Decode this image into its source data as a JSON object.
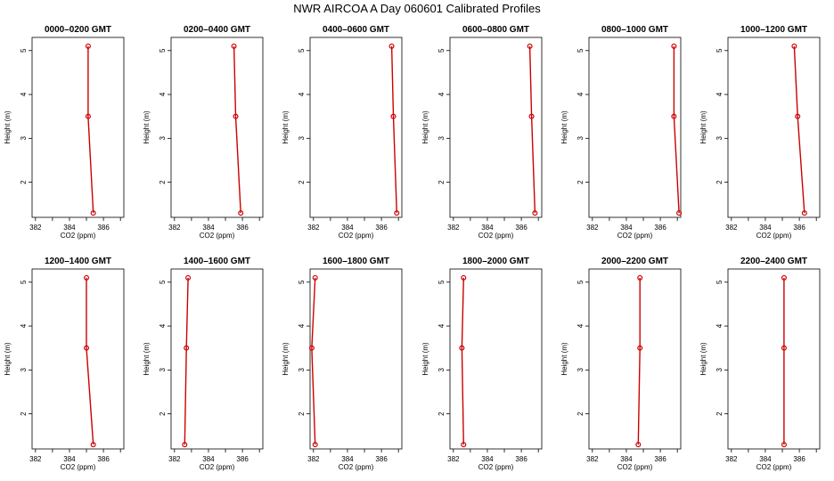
{
  "figure_title": "NWR AIRCOA A  Day 060601  Calibrated Profiles",
  "colors": {
    "series": "#cc0000",
    "axis": "#000000"
  },
  "chart_data": [
    {
      "type": "line",
      "title": "0000–0200 GMT",
      "xlabel": "CO2 (ppm)",
      "ylabel": "Height (m)",
      "xlim": [
        381.8,
        387.2
      ],
      "ylim": [
        1.2,
        5.3
      ],
      "xticks": [
        382,
        384,
        386
      ],
      "yticks": [
        2,
        3,
        4,
        5
      ],
      "series": [
        {
          "x": [
            385.4,
            385.1,
            385.1
          ],
          "y": [
            1.3,
            3.5,
            5.1
          ]
        }
      ]
    },
    {
      "type": "line",
      "title": "0200–0400 GMT",
      "xlabel": "CO2 (ppm)",
      "ylabel": "Height (m)",
      "xlim": [
        381.8,
        387.2
      ],
      "ylim": [
        1.2,
        5.3
      ],
      "xticks": [
        382,
        384,
        386
      ],
      "yticks": [
        2,
        3,
        4,
        5
      ],
      "series": [
        {
          "x": [
            385.9,
            385.6,
            385.5
          ],
          "y": [
            1.3,
            3.5,
            5.1
          ]
        }
      ]
    },
    {
      "type": "line",
      "title": "0400–0600 GMT",
      "xlabel": "CO2 (ppm)",
      "ylabel": "Height (m)",
      "xlim": [
        381.8,
        387.2
      ],
      "ylim": [
        1.2,
        5.3
      ],
      "xticks": [
        382,
        384,
        386
      ],
      "yticks": [
        2,
        3,
        4,
        5
      ],
      "series": [
        {
          "x": [
            386.9,
            386.7,
            386.6
          ],
          "y": [
            1.3,
            3.5,
            5.1
          ]
        }
      ]
    },
    {
      "type": "line",
      "title": "0600–0800 GMT",
      "xlabel": "CO2 (ppm)",
      "ylabel": "Height (m)",
      "xlim": [
        381.8,
        387.2
      ],
      "ylim": [
        1.2,
        5.3
      ],
      "xticks": [
        382,
        384,
        386
      ],
      "yticks": [
        2,
        3,
        4,
        5
      ],
      "series": [
        {
          "x": [
            386.8,
            386.6,
            386.5
          ],
          "y": [
            1.3,
            3.5,
            5.1
          ]
        }
      ]
    },
    {
      "type": "line",
      "title": "0800–1000 GMT",
      "xlabel": "CO2 (ppm)",
      "ylabel": "Height (m)",
      "xlim": [
        381.8,
        387.2
      ],
      "ylim": [
        1.2,
        5.3
      ],
      "xticks": [
        382,
        384,
        386
      ],
      "yticks": [
        2,
        3,
        4,
        5
      ],
      "series": [
        {
          "x": [
            387.1,
            386.8,
            386.8
          ],
          "y": [
            1.3,
            3.5,
            5.1
          ]
        }
      ]
    },
    {
      "type": "line",
      "title": "1000–1200 GMT",
      "xlabel": "CO2 (ppm)",
      "ylabel": "Height (m)",
      "xlim": [
        381.8,
        387.2
      ],
      "ylim": [
        1.2,
        5.3
      ],
      "xticks": [
        382,
        384,
        386
      ],
      "yticks": [
        2,
        3,
        4,
        5
      ],
      "series": [
        {
          "x": [
            386.3,
            385.9,
            385.7
          ],
          "y": [
            1.3,
            3.5,
            5.1
          ]
        }
      ]
    },
    {
      "type": "line",
      "title": "1200–1400 GMT",
      "xlabel": "CO2 (ppm)",
      "ylabel": "Height (m)",
      "xlim": [
        381.8,
        387.2
      ],
      "ylim": [
        1.2,
        5.3
      ],
      "xticks": [
        382,
        384,
        386
      ],
      "yticks": [
        2,
        3,
        4,
        5
      ],
      "series": [
        {
          "x": [
            385.4,
            385.0,
            385.0
          ],
          "y": [
            1.3,
            3.5,
            5.1
          ]
        }
      ]
    },
    {
      "type": "line",
      "title": "1400–1600 GMT",
      "xlabel": "CO2 (ppm)",
      "ylabel": "Height (m)",
      "xlim": [
        381.8,
        387.2
      ],
      "ylim": [
        1.2,
        5.3
      ],
      "xticks": [
        382,
        384,
        386
      ],
      "yticks": [
        2,
        3,
        4,
        5
      ],
      "series": [
        {
          "x": [
            382.6,
            382.7,
            382.8
          ],
          "y": [
            1.3,
            3.5,
            5.1
          ]
        }
      ]
    },
    {
      "type": "line",
      "title": "1600–1800 GMT",
      "xlabel": "CO2 (ppm)",
      "ylabel": "Height (m)",
      "xlim": [
        381.8,
        387.2
      ],
      "ylim": [
        1.2,
        5.3
      ],
      "xticks": [
        382,
        384,
        386
      ],
      "yticks": [
        2,
        3,
        4,
        5
      ],
      "series": [
        {
          "x": [
            382.1,
            381.9,
            382.1
          ],
          "y": [
            1.3,
            3.5,
            5.1
          ]
        }
      ]
    },
    {
      "type": "line",
      "title": "1800–2000 GMT",
      "xlabel": "CO2 (ppm)",
      "ylabel": "Height (m)",
      "xlim": [
        381.8,
        387.2
      ],
      "ylim": [
        1.2,
        5.3
      ],
      "xticks": [
        382,
        384,
        386
      ],
      "yticks": [
        2,
        3,
        4,
        5
      ],
      "series": [
        {
          "x": [
            382.6,
            382.5,
            382.6
          ],
          "y": [
            1.3,
            3.5,
            5.1
          ]
        }
      ]
    },
    {
      "type": "line",
      "title": "2000–2200 GMT",
      "xlabel": "CO2 (ppm)",
      "ylabel": "Height (m)",
      "xlim": [
        381.8,
        387.2
      ],
      "ylim": [
        1.2,
        5.3
      ],
      "xticks": [
        382,
        384,
        386
      ],
      "yticks": [
        2,
        3,
        4,
        5
      ],
      "series": [
        {
          "x": [
            384.7,
            384.8,
            384.8
          ],
          "y": [
            1.3,
            3.5,
            5.1
          ]
        }
      ]
    },
    {
      "type": "line",
      "title": "2200–2400 GMT",
      "xlabel": "CO2 (ppm)",
      "ylabel": "Height (m)",
      "xlim": [
        381.8,
        387.2
      ],
      "ylim": [
        1.2,
        5.3
      ],
      "xticks": [
        382,
        384,
        386
      ],
      "yticks": [
        2,
        3,
        4,
        5
      ],
      "series": [
        {
          "x": [
            385.1,
            385.1,
            385.1
          ],
          "y": [
            1.3,
            3.5,
            5.1
          ]
        }
      ]
    }
  ]
}
